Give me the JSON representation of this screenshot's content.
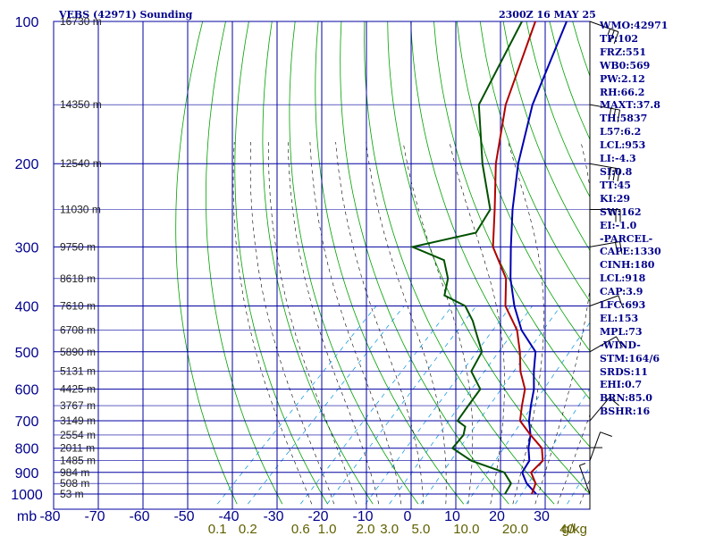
{
  "header": {
    "station": "VEBS (42971) Sounding",
    "time": "2300Z 16 MAY 25"
  },
  "indices": [
    "WMO:42971",
    "TP:102",
    "FRZ:551",
    "WB0:569",
    "PW:2.12",
    "RH:66.2",
    "MAXT:37.8",
    "TH:5837",
    "L57:6.2",
    "LCL:953",
    "LI:-4.3",
    "SI:0.8",
    "TT:45",
    "KI:29",
    "SW:162",
    "EI:-1.0",
    "-PARCEL-",
    "CAPE:1330",
    "CINH:180",
    "LCL:918",
    "CAP:3.9",
    "LFC:693",
    "EL:153",
    "MPL:73",
    "-WIND-",
    "STM:164/6",
    "SRDS:11",
    "EHI:0.7",
    "BRN:85.0",
    "BSHR:16"
  ],
  "colors": {
    "grid": "#0000a0",
    "dry_adiabat": "#00a000",
    "moist_adiabat": "#000000",
    "mixing_ratio": "#0090e0",
    "temperature": "#b00000",
    "dewpoint": "#005000",
    "parcel": "#0000b0",
    "label": "#00008b",
    "mixing_label": "#606000",
    "height_label": "#222222"
  },
  "chart_data": {
    "type": "skew-t",
    "pressure_unit_label": "mb",
    "pressure_levels": [
      100,
      200,
      300,
      400,
      500,
      600,
      700,
      800,
      900,
      1000
    ],
    "pressure_range": [
      100,
      1050
    ],
    "temperature_ticks": [
      -80,
      -70,
      -60,
      -50,
      -40,
      -30,
      -20,
      -10,
      0,
      10,
      20,
      30
    ],
    "mixing_ratio_labels": [
      {
        "text": "0.1",
        "value": 0.1
      },
      {
        "text": "0.2",
        "value": 0.2
      },
      {
        "text": "0.6",
        "value": 0.6
      },
      {
        "text": "1.0",
        "value": 1.0
      },
      {
        "text": "2.0",
        "value": 2.0
      },
      {
        "text": "3.0",
        "value": 3.0
      },
      {
        "text": "5.0",
        "value": 5.0
      },
      {
        "text": "10.0",
        "value": 10.0
      },
      {
        "text": "20.0",
        "value": 20.0
      },
      {
        "text": "40",
        "value": 40
      }
    ],
    "mixing_ratio_unit": "g/kg",
    "height_labels": [
      {
        "p": 100,
        "text": "16730 m"
      },
      {
        "p": 150,
        "text": "14350 m"
      },
      {
        "p": 200,
        "text": "12540 m"
      },
      {
        "p": 250,
        "text": "11030 m"
      },
      {
        "p": 300,
        "text": "9750 m"
      },
      {
        "p": 350,
        "text": "8618 m"
      },
      {
        "p": 400,
        "text": "7610 m"
      },
      {
        "p": 450,
        "text": "6708 m"
      },
      {
        "p": 500,
        "text": "5890 m"
      },
      {
        "p": 550,
        "text": "5131 m"
      },
      {
        "p": 600,
        "text": "4425 m"
      },
      {
        "p": 650,
        "text": "3767 m"
      },
      {
        "p": 700,
        "text": "3149 m"
      },
      {
        "p": 750,
        "text": "2554 m"
      },
      {
        "p": 800,
        "text": "2011 m"
      },
      {
        "p": 850,
        "text": "1485 m"
      },
      {
        "p": 900,
        "text": "984 m"
      },
      {
        "p": 950,
        "text": "508 m"
      },
      {
        "p": 1000,
        "text": "53 m"
      }
    ],
    "temperature": [
      [
        100,
        -78
      ],
      [
        150,
        -66
      ],
      [
        200,
        -55
      ],
      [
        250,
        -45
      ],
      [
        300,
        -37
      ],
      [
        350,
        -27
      ],
      [
        400,
        -21
      ],
      [
        450,
        -13
      ],
      [
        500,
        -7.5
      ],
      [
        550,
        -3
      ],
      [
        600,
        2
      ],
      [
        650,
        5
      ],
      [
        700,
        8
      ],
      [
        750,
        13.5
      ],
      [
        800,
        19
      ],
      [
        850,
        22
      ],
      [
        900,
        22
      ],
      [
        950,
        25.5
      ],
      [
        1000,
        27
      ]
    ],
    "dewpoint": [
      [
        100,
        -81
      ],
      [
        150,
        -72
      ],
      [
        200,
        -58
      ],
      [
        250,
        -46
      ],
      [
        280,
        -44
      ],
      [
        300,
        -55
      ],
      [
        320,
        -45
      ],
      [
        350,
        -40
      ],
      [
        380,
        -37
      ],
      [
        400,
        -30
      ],
      [
        430,
        -25
      ],
      [
        460,
        -21
      ],
      [
        500,
        -16
      ],
      [
        550,
        -14
      ],
      [
        600,
        -8
      ],
      [
        650,
        -7
      ],
      [
        700,
        -6
      ],
      [
        720,
        -3
      ],
      [
        750,
        -1.5
      ],
      [
        800,
        -1
      ],
      [
        850,
        6
      ],
      [
        900,
        16
      ],
      [
        950,
        20
      ],
      [
        1000,
        21
      ]
    ],
    "parcel": [
      [
        100,
        -71
      ],
      [
        150,
        -60
      ],
      [
        200,
        -50
      ],
      [
        250,
        -41
      ],
      [
        300,
        -33
      ],
      [
        350,
        -26
      ],
      [
        400,
        -19
      ],
      [
        450,
        -12
      ],
      [
        500,
        -4
      ],
      [
        550,
        0
      ],
      [
        600,
        4
      ],
      [
        650,
        7
      ],
      [
        700,
        10
      ],
      [
        750,
        13.5
      ],
      [
        800,
        16
      ],
      [
        850,
        19
      ],
      [
        900,
        20
      ],
      [
        950,
        23.5
      ],
      [
        1000,
        28
      ]
    ],
    "wind_barbs": [
      {
        "p": 100,
        "dir": 290,
        "spd": 25
      },
      {
        "p": 150,
        "dir": 280,
        "spd": 25
      },
      {
        "p": 200,
        "dir": 280,
        "spd": 30
      },
      {
        "p": 250,
        "dir": 270,
        "spd": 25
      },
      {
        "p": 300,
        "dir": 260,
        "spd": 20
      },
      {
        "p": 400,
        "dir": 250,
        "spd": 10
      },
      {
        "p": 500,
        "dir": 240,
        "spd": 10
      },
      {
        "p": 700,
        "dir": 220,
        "spd": 10
      },
      {
        "p": 850,
        "dir": 200,
        "spd": 10
      },
      {
        "p": 925,
        "dir": 180,
        "spd": 10
      },
      {
        "p": 1000,
        "dir": 160,
        "spd": 5
      }
    ],
    "grid": true
  }
}
